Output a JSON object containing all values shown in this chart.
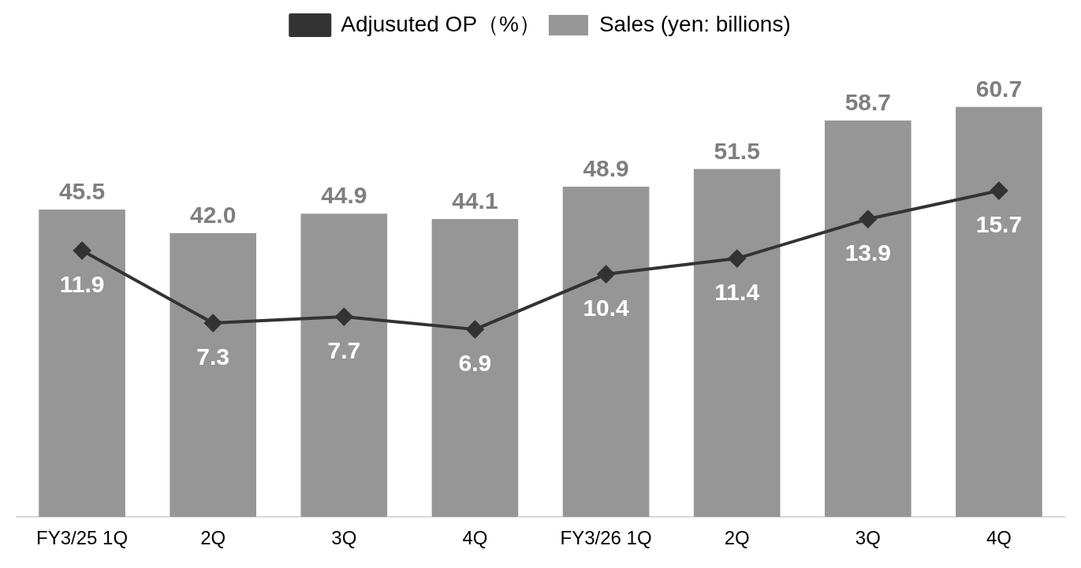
{
  "chart_data": {
    "type": "bar",
    "categories": [
      "FY3/25 1Q",
      "2Q",
      "3Q",
      "4Q",
      "FY3/26 1Q",
      "2Q",
      "3Q",
      "4Q"
    ],
    "series": [
      {
        "name": "Sales (yen: billions)",
        "color": "#969696",
        "values": [
          45.5,
          42.0,
          44.9,
          44.1,
          48.9,
          51.5,
          58.7,
          60.7
        ],
        "value_labels": [
          "45.5",
          "42.0",
          "44.9",
          "44.1",
          "48.9",
          "51.5",
          "58.7",
          "60.7"
        ]
      },
      {
        "name": "Adjusuted OP（%）",
        "type": "line",
        "axis": "y2",
        "color": "#333333",
        "marker": "diamond",
        "values": [
          11.9,
          7.3,
          7.7,
          6.9,
          10.4,
          11.4,
          13.9,
          15.7
        ],
        "value_labels": [
          "11.9",
          "7.3",
          "7.7",
          "6.9",
          "10.4",
          "11.4",
          "13.9",
          "15.7"
        ]
      }
    ],
    "legend": "top",
    "grid": false,
    "tick_labels": "x"
  }
}
